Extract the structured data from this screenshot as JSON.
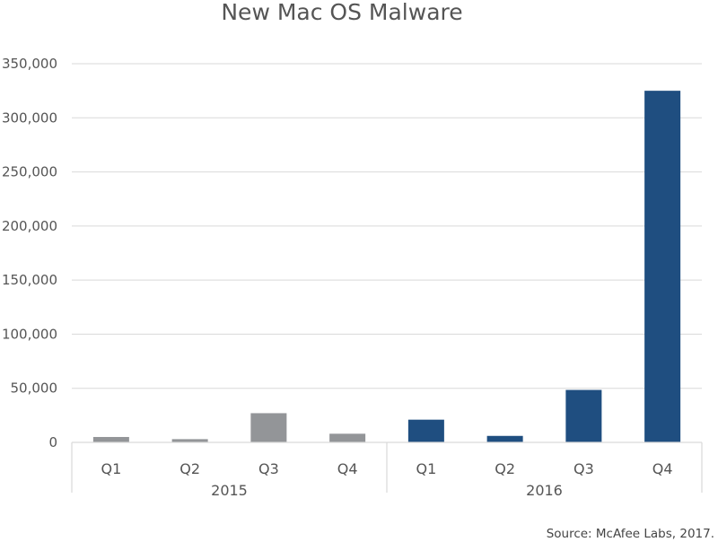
{
  "chart_data": {
    "type": "bar",
    "title": "New Mac OS Malware",
    "xlabel": "",
    "ylabel": "",
    "ylim": [
      0,
      350000
    ],
    "yticks": [
      0,
      50000,
      100000,
      150000,
      200000,
      250000,
      300000,
      350000
    ],
    "ytick_labels": [
      "0",
      "50,000",
      "100,000",
      "150,000",
      "200,000",
      "250,000",
      "300,000",
      "350,000"
    ],
    "grid": true,
    "legend": "none",
    "groups": [
      {
        "label": "2015",
        "color": "#939598",
        "bars": [
          {
            "category": "Q1",
            "value": 5000
          },
          {
            "category": "Q2",
            "value": 3000
          },
          {
            "category": "Q3",
            "value": 27000
          },
          {
            "category": "Q4",
            "value": 8000
          }
        ]
      },
      {
        "label": "2016",
        "color": "#1f4e80",
        "bars": [
          {
            "category": "Q1",
            "value": 21000
          },
          {
            "category": "Q2",
            "value": 6000
          },
          {
            "category": "Q3",
            "value": 48500
          },
          {
            "category": "Q4",
            "value": 325000
          }
        ]
      }
    ],
    "source": "Source: McAfee Labs, 2017."
  }
}
